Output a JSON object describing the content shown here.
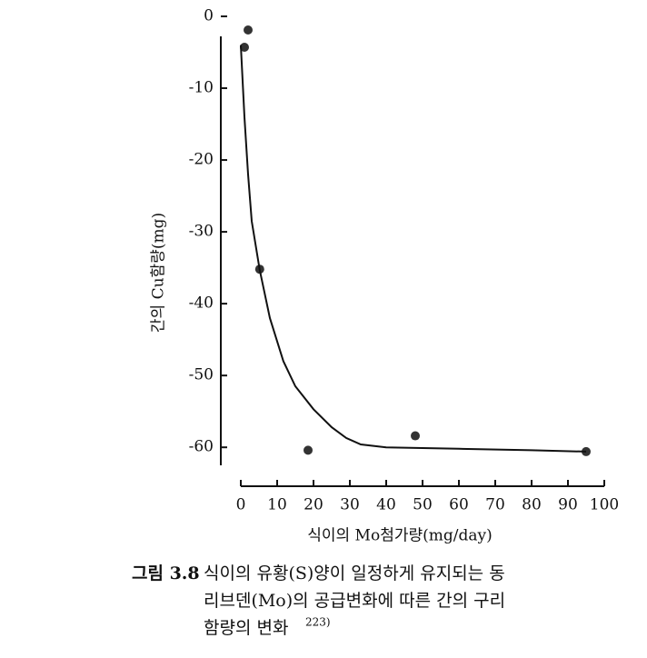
{
  "chart_data": {
    "type": "scatter",
    "y_label": "간의 Cu함량(mg)",
    "x_label": "식이의 Mo첨가량(mg/day)",
    "xlim": [
      0,
      100
    ],
    "xticks": [
      0,
      10,
      20,
      30,
      40,
      50,
      60,
      70,
      80,
      90,
      100
    ],
    "ylim": [
      -62,
      0
    ],
    "yticks": [
      0,
      -10,
      -20,
      -30,
      -40,
      -50,
      -60
    ],
    "series": [
      {
        "type": "scatter",
        "color": "#333333",
        "x": [
          1,
          2,
          5.2,
          18.5,
          48,
          95
        ],
        "values": [
          -4.3,
          -1.9,
          -35.2,
          -60.4,
          -58.4,
          -60.6
        ]
      },
      {
        "type": "line",
        "color": "#111111",
        "x": [
          0,
          1,
          2,
          3,
          5.2,
          8,
          11.7,
          15,
          20,
          25,
          29,
          33,
          40,
          60,
          80,
          95
        ],
        "values": [
          -4,
          -14,
          -22,
          -28.5,
          -35.3,
          -42,
          -48,
          -51.5,
          -54.7,
          -57.2,
          -58.7,
          -59.6,
          -60,
          -60.2,
          -60.4,
          -60.6
        ]
      }
    ]
  },
  "caption": {
    "label": "그림 3.8",
    "lines": [
      "식이의 유황(S)양이 일정하게 유지되는 동",
      "리브덴(Mo)의 공급변화에 따른 간의 구리",
      "함량의 변화"
    ],
    "ref": "223)"
  }
}
